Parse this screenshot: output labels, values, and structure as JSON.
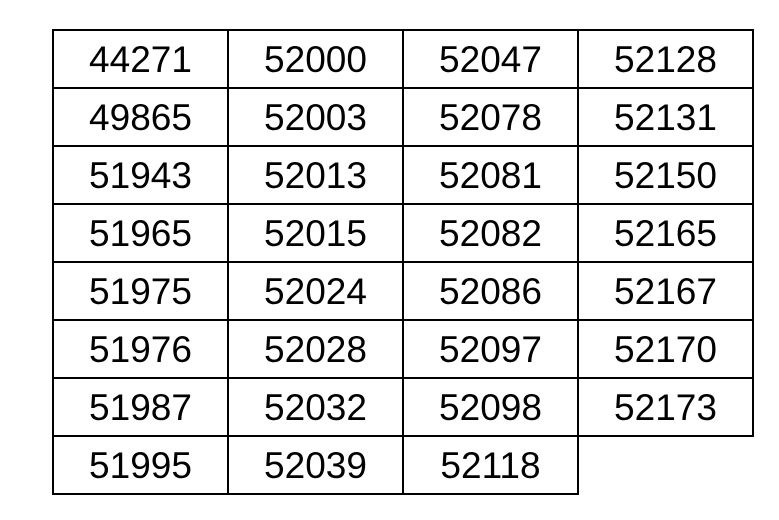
{
  "chart_data": {
    "type": "table",
    "title": "",
    "columns": 4,
    "rows": [
      [
        "44271",
        "52000",
        "52047",
        "52128"
      ],
      [
        "49865",
        "52003",
        "52078",
        "52131"
      ],
      [
        "51943",
        "52013",
        "52081",
        "52150"
      ],
      [
        "51965",
        "52015",
        "52082",
        "52165"
      ],
      [
        "51975",
        "52024",
        "52086",
        "52167"
      ],
      [
        "51976",
        "52028",
        "52097",
        "52170"
      ],
      [
        "51987",
        "52032",
        "52098",
        "52173"
      ],
      [
        "51995",
        "52039",
        "52118",
        null
      ]
    ],
    "layout_hints": {
      "grid": "all-borders",
      "last_row_cells": 3,
      "cell_alignment": "center"
    }
  },
  "colors": {
    "background": "#ffffff",
    "border": "#000000",
    "text": "#000000"
  }
}
